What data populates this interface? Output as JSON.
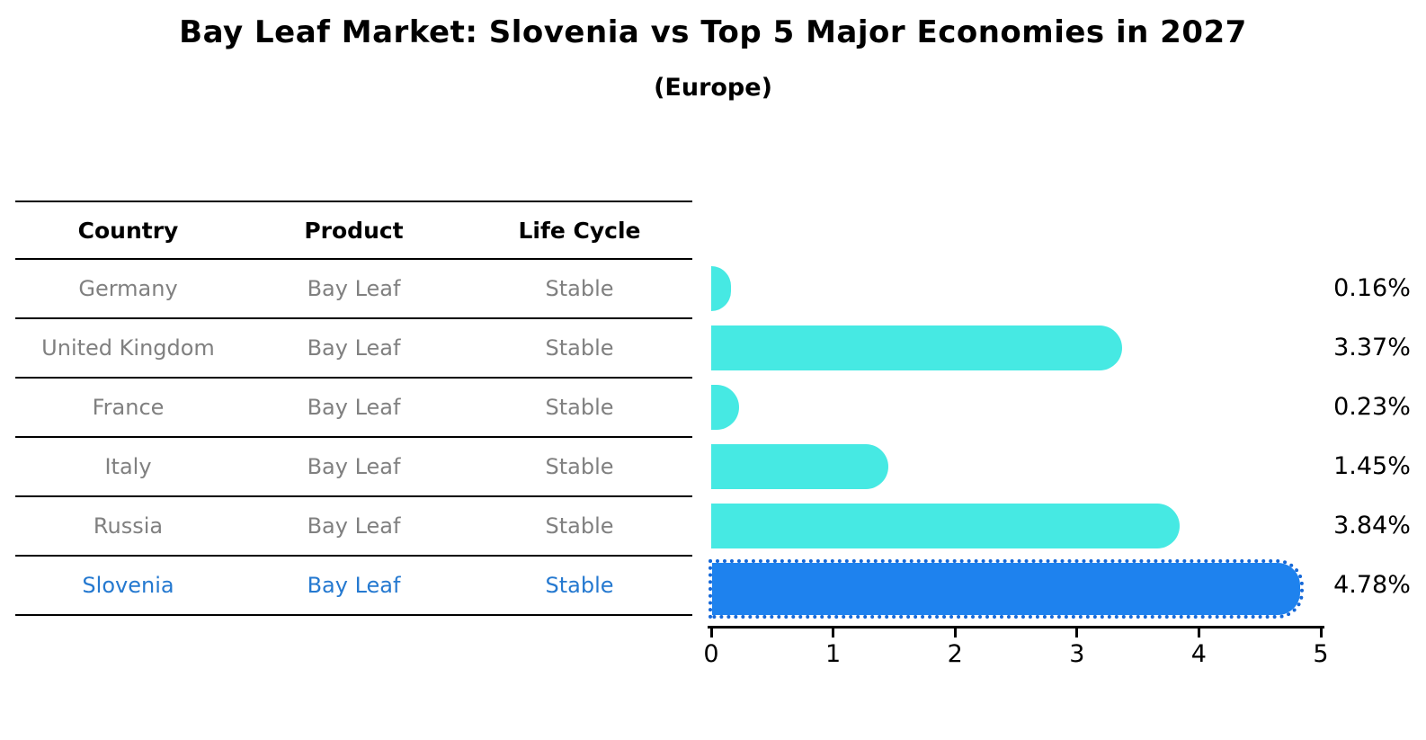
{
  "title": "Bay Leaf Market: Slovenia vs Top 5 Major Economies in 2027",
  "subtitle": "(Europe)",
  "table": {
    "headers": [
      "Country",
      "Product",
      "Life Cycle"
    ],
    "rows": [
      {
        "country": "Germany",
        "product": "Bay Leaf",
        "life_cycle": "Stable"
      },
      {
        "country": "United Kingdom",
        "product": "Bay Leaf",
        "life_cycle": "Stable"
      },
      {
        "country": "France",
        "product": "Bay Leaf",
        "life_cycle": "Stable"
      },
      {
        "country": "Italy",
        "product": "Bay Leaf",
        "life_cycle": "Stable"
      },
      {
        "country": "Russia",
        "product": "Bay Leaf",
        "life_cycle": "Stable"
      },
      {
        "country": "Slovenia",
        "product": "Bay Leaf",
        "life_cycle": "Stable"
      }
    ],
    "highlighted_row": "Slovenia"
  },
  "chart_data": {
    "type": "bar",
    "orientation": "horizontal",
    "title": "Bay Leaf Market: Slovenia vs Top 5 Major Economies in 2027",
    "subtitle": "(Europe)",
    "categories": [
      "Germany",
      "United Kingdom",
      "France",
      "Italy",
      "Russia",
      "Slovenia"
    ],
    "values": [
      0.16,
      3.37,
      0.23,
      1.45,
      3.84,
      4.78
    ],
    "value_labels": [
      "0.16%",
      "3.37%",
      "0.23%",
      "1.45%",
      "3.84%",
      "4.78%"
    ],
    "xlim": [
      0,
      5
    ],
    "x_ticks": [
      "0",
      "1",
      "2",
      "3",
      "4",
      "5"
    ],
    "highlight_index": 5,
    "grid": false,
    "legend": null
  },
  "colors": {
    "bar": "#46E9E3",
    "highlight_bar": "#1E82EE",
    "highlight_border": "#1568D8",
    "highlight_text": "#2579D0",
    "row_text": "#808080",
    "header_text": "#000000",
    "axis": "#000000"
  }
}
